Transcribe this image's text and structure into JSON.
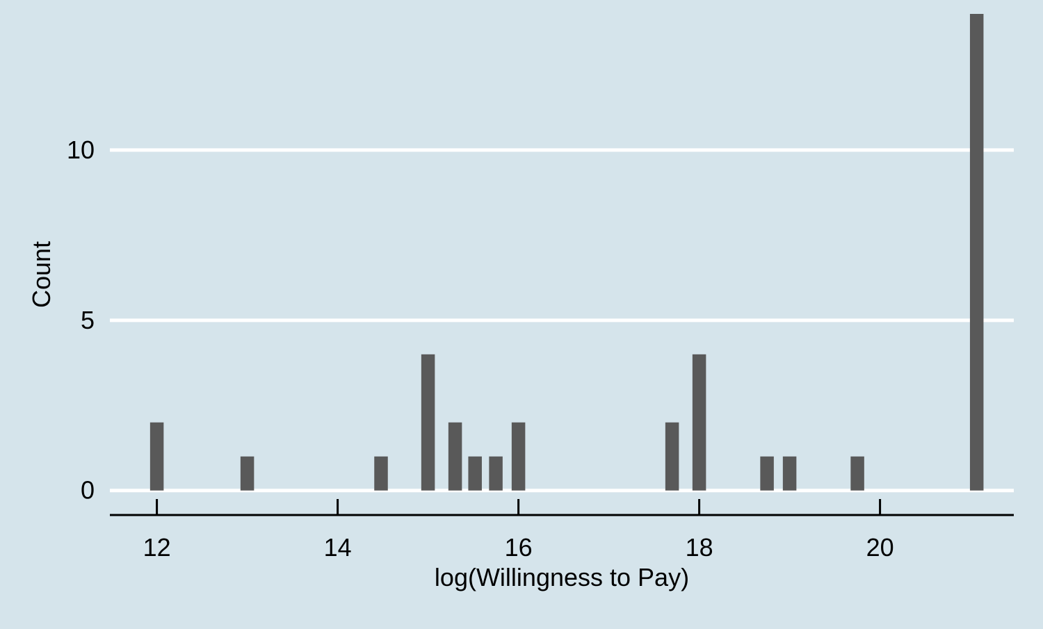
{
  "chart_data": {
    "type": "bar",
    "subtype": "histogram",
    "title": "",
    "xlabel": "log(Willingness to Pay)",
    "ylabel": "Count",
    "xlim": [
      11.48,
      21.48
    ],
    "ylim": [
      -0.72,
      14.0
    ],
    "x_ticks": [
      12,
      14,
      16,
      18,
      20
    ],
    "x_tick_labels": [
      "12",
      "14",
      "16",
      "18",
      "20"
    ],
    "y_ticks": [
      0,
      5,
      10
    ],
    "y_tick_labels": [
      "0",
      "5",
      "10"
    ],
    "grid": "horizontal major lines only",
    "legend": "none",
    "bar_width": 0.15,
    "bars": [
      {
        "x": 12.0,
        "count": 2
      },
      {
        "x": 13.0,
        "count": 1
      },
      {
        "x": 14.48,
        "count": 1
      },
      {
        "x": 15.0,
        "count": 4
      },
      {
        "x": 15.3,
        "count": 2
      },
      {
        "x": 15.52,
        "count": 1
      },
      {
        "x": 15.75,
        "count": 1
      },
      {
        "x": 16.0,
        "count": 2
      },
      {
        "x": 17.7,
        "count": 2
      },
      {
        "x": 18.0,
        "count": 4
      },
      {
        "x": 18.75,
        "count": 1
      },
      {
        "x": 19.0,
        "count": 1
      },
      {
        "x": 19.75,
        "count": 1
      },
      {
        "x": 21.07,
        "count": 14
      }
    ],
    "colors": {
      "background": "#d5e4eb",
      "bar": "#595959",
      "grid": "#ffffff",
      "axis": "#000000"
    }
  }
}
